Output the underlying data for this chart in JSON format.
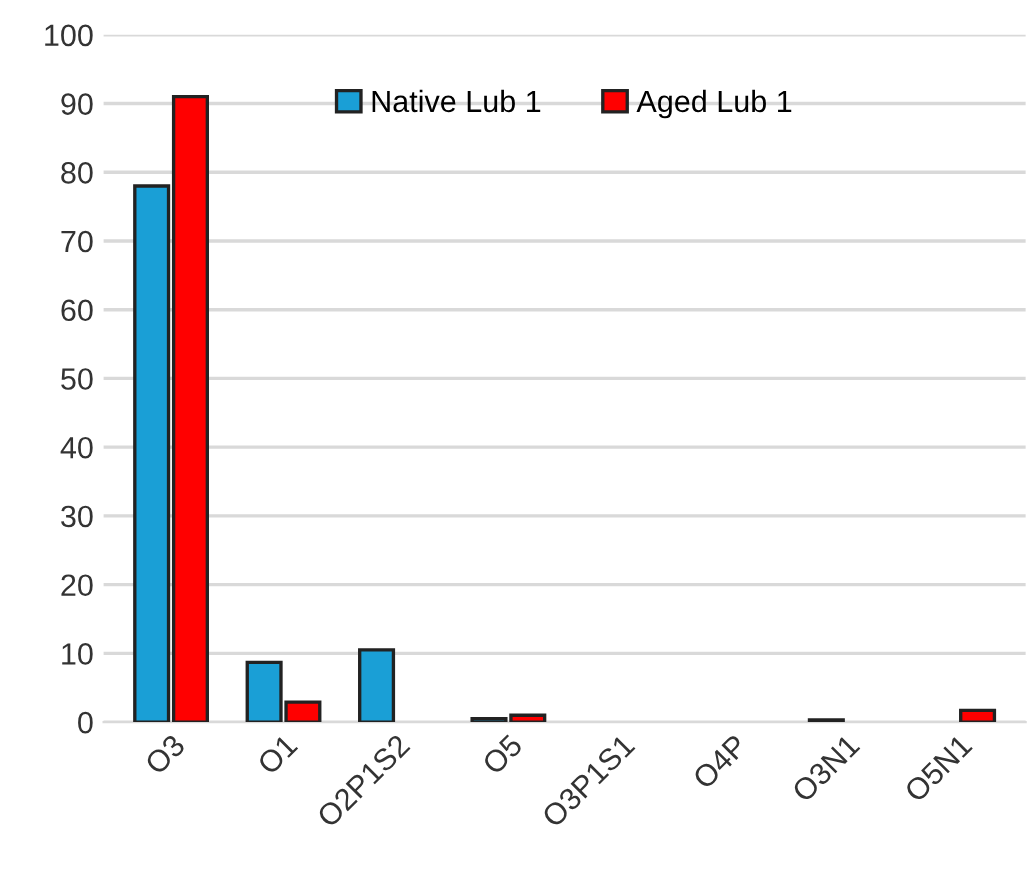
{
  "chart_data": {
    "type": "bar",
    "categories": [
      "O3",
      "O1",
      "O2P1S2",
      "O5",
      "O3P1S1",
      "O4P",
      "O3N1",
      "O5N1"
    ],
    "series": [
      {
        "name": "Native Lub 1",
        "color": "#1a9fd6",
        "values": [
          78,
          8.7,
          10.5,
          0.5,
          null,
          null,
          0.3,
          null
        ]
      },
      {
        "name": "Aged Lub 1",
        "color": "#ff0000",
        "values": [
          91,
          2.9,
          null,
          1,
          null,
          null,
          null,
          1.7
        ]
      }
    ],
    "ylim": [
      0,
      100
    ],
    "yticks": [
      0,
      10,
      20,
      30,
      40,
      50,
      60,
      70,
      80,
      90,
      100
    ],
    "grid": "y",
    "legend": "top"
  }
}
